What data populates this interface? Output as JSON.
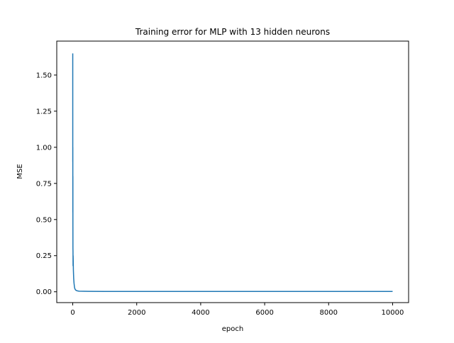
{
  "chart_data": {
    "type": "line",
    "title": "Training error for MLP with 13 hidden neurons",
    "xlabel": "epoch",
    "ylabel": "MSE",
    "xlim": [
      -500,
      10500
    ],
    "ylim": [
      -0.075,
      1.735
    ],
    "xticks": [
      0,
      2000,
      4000,
      6000,
      8000,
      10000
    ],
    "xtick_labels": [
      "0",
      "2000",
      "4000",
      "6000",
      "8000",
      "10000"
    ],
    "yticks": [
      0.0,
      0.25,
      0.5,
      0.75,
      1.0,
      1.25,
      1.5
    ],
    "ytick_labels": [
      "0.00",
      "0.25",
      "0.50",
      "0.75",
      "1.00",
      "1.25",
      "1.50"
    ],
    "grid": false,
    "line_color": "#1f77b4",
    "series": [
      {
        "x": [
          0,
          1,
          2,
          3,
          4,
          5,
          6,
          8,
          10,
          12,
          15,
          20,
          25,
          30,
          40,
          50,
          60,
          80,
          100,
          150,
          200,
          500,
          1000,
          2000,
          4000,
          6000,
          8000,
          10000
        ],
        "y": [
          1.65,
          0.9,
          1.0,
          0.55,
          0.8,
          0.45,
          0.3,
          0.28,
          0.18,
          0.25,
          0.22,
          0.15,
          0.12,
          0.09,
          0.06,
          0.04,
          0.025,
          0.015,
          0.01,
          0.006,
          0.004,
          0.003,
          0.002,
          0.002,
          0.002,
          0.002,
          0.002,
          0.002
        ]
      }
    ]
  }
}
